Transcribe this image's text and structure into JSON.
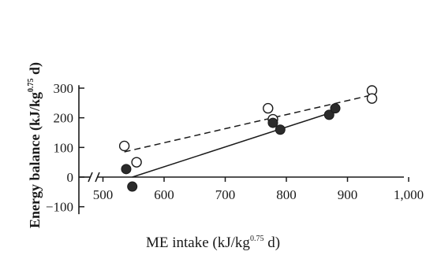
{
  "chart_data": {
    "type": "scatter",
    "title": "",
    "xlabel": "ME intake (kJ/kg0.75 d)",
    "xlabel_parts": {
      "base": "ME intake (kJ/kg",
      "sup": "0.75",
      "tail": " d)"
    },
    "ylabel": "Energy balance (kJ/kg0.75 d)",
    "ylabel_parts": {
      "base": "Energy balance (kJ/kg",
      "sup": "0.75",
      "tail": " d)"
    },
    "xlim": [
      450,
      1000
    ],
    "ylim": [
      -125,
      310
    ],
    "x_axis_break": true,
    "x_ticks": [
      500,
      600,
      700,
      800,
      900,
      1000
    ],
    "x_tick_labels": [
      "500",
      "600",
      "700",
      "800",
      "900",
      "1,000"
    ],
    "y_ticks": [
      -100,
      0,
      100,
      200,
      300
    ],
    "y_tick_labels": [
      "−100",
      "0",
      "100",
      "200",
      "300"
    ],
    "grid": false,
    "legend": "none",
    "series": [
      {
        "marker": "open-circle",
        "line_style": "dashed",
        "points": [
          {
            "x": 535,
            "y": 105
          },
          {
            "x": 555,
            "y": 50
          },
          {
            "x": 770,
            "y": 232
          },
          {
            "x": 778,
            "y": 195
          },
          {
            "x": 940,
            "y": 292
          },
          {
            "x": 940,
            "y": 265
          }
        ],
        "fit_line": [
          {
            "x": 535,
            "y": 85
          },
          {
            "x": 940,
            "y": 277
          }
        ]
      },
      {
        "marker": "filled-circle",
        "line_style": "solid",
        "points": [
          {
            "x": 538,
            "y": 27
          },
          {
            "x": 548,
            "y": -32
          },
          {
            "x": 778,
            "y": 183
          },
          {
            "x": 790,
            "y": 160
          },
          {
            "x": 870,
            "y": 210
          },
          {
            "x": 880,
            "y": 232
          }
        ],
        "fit_line": [
          {
            "x": 548,
            "y": 0
          },
          {
            "x": 880,
            "y": 222
          }
        ]
      }
    ]
  }
}
